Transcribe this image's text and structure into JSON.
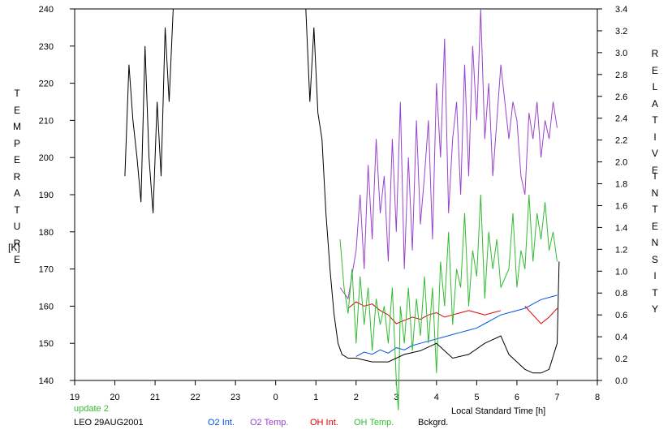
{
  "chart_data": {
    "type": "line",
    "left_axis": {
      "label_letters": [
        "T",
        "E",
        "M",
        "P",
        "E",
        "R",
        "A",
        "T",
        "U",
        "R",
        "E"
      ],
      "unit": "[K]",
      "ylim": [
        140,
        240
      ],
      "ticks": [
        "140",
        "150",
        "160",
        "170",
        "180",
        "190",
        "200",
        "210",
        "220",
        "230",
        "240"
      ]
    },
    "right_axis": {
      "label_word1": [
        "R",
        "E",
        "L",
        "A",
        "T",
        "I",
        "V",
        "E"
      ],
      "label_word2": [
        "I",
        "N",
        "T",
        "E",
        "N",
        "S",
        "I",
        "T",
        "Y"
      ],
      "ylim": [
        0.0,
        3.4
      ],
      "ticks": [
        "0.0",
        "0.2",
        "0.4",
        "0.6",
        "0.8",
        "1.0",
        "1.2",
        "1.4",
        "1.6",
        "1.8",
        "2.0",
        "2.2",
        "2.4",
        "2.6",
        "2.8",
        "3.0",
        "3.2",
        "3.4"
      ]
    },
    "x_axis": {
      "label": "Local Standard Time [h]",
      "range_hours_from_19": [
        0,
        13
      ],
      "ticks": [
        "19",
        "20",
        "21",
        "22",
        "23",
        "0",
        "1",
        "2",
        "3",
        "4",
        "5",
        "6",
        "7",
        "8"
      ]
    },
    "series": [
      {
        "name": "O2 Int.",
        "axis": "right",
        "color": "#0055dd",
        "x": [
          2.0,
          2.2,
          2.4,
          2.6,
          2.8,
          3.0,
          3.2,
          3.4,
          3.6,
          3.8,
          4.0,
          4.2,
          4.4,
          4.6,
          4.8,
          5.0,
          5.2,
          5.4,
          5.6,
          6.2,
          6.4,
          6.6,
          6.8,
          7.0
        ],
        "y": [
          0.22,
          0.26,
          0.24,
          0.28,
          0.25,
          0.3,
          0.28,
          0.32,
          0.34,
          0.36,
          0.38,
          0.4,
          0.42,
          0.44,
          0.46,
          0.48,
          0.52,
          0.56,
          0.6,
          0.66,
          0.7,
          0.74,
          0.76,
          0.78
        ]
      },
      {
        "name": "O2 Temp.",
        "axis": "left",
        "color": "#9944cc",
        "x": [
          1.6,
          1.8,
          2.0,
          2.1,
          2.2,
          2.3,
          2.4,
          2.5,
          2.6,
          2.7,
          2.8,
          2.9,
          3.0,
          3.1,
          3.2,
          3.3,
          3.4,
          3.5,
          3.6,
          3.7,
          3.8,
          3.9,
          4.0,
          4.1,
          4.2,
          4.3,
          4.4,
          4.5,
          4.6,
          4.7,
          4.8,
          4.9,
          5.0,
          5.1,
          5.2,
          5.3,
          5.4,
          5.5,
          5.6,
          5.8,
          5.9,
          6.0,
          6.1,
          6.2,
          6.3,
          6.4,
          6.5,
          6.6,
          6.7,
          6.8,
          6.9,
          7.0
        ],
        "y": [
          165,
          162,
          175,
          190,
          170,
          198,
          178,
          205,
          185,
          195,
          172,
          205,
          180,
          215,
          170,
          200,
          175,
          210,
          182,
          195,
          210,
          178,
          220,
          200,
          232,
          185,
          205,
          215,
          190,
          225,
          195,
          230,
          210,
          240,
          205,
          220,
          195,
          210,
          225,
          205,
          215,
          210,
          195,
          190,
          212,
          205,
          215,
          200,
          210,
          205,
          215,
          208
        ]
      },
      {
        "name": "OH Int.",
        "axis": "right",
        "color": "#dd0000",
        "x": [
          1.6,
          1.8,
          2.0,
          2.2,
          2.4,
          2.6,
          2.8,
          3.0,
          3.2,
          3.4,
          3.6,
          3.8,
          4.0,
          4.2,
          4.4,
          4.6,
          4.8,
          5.0,
          5.2,
          5.4,
          5.6,
          6.2,
          6.4,
          6.6,
          6.8,
          7.0
        ],
        "y": [
          0.65,
          0.66,
          0.72,
          0.68,
          0.7,
          0.64,
          0.6,
          0.52,
          0.55,
          0.58,
          0.56,
          0.6,
          0.62,
          0.58,
          0.6,
          0.62,
          0.64,
          0.62,
          0.6,
          0.62,
          0.64,
          0.68,
          0.6,
          0.52,
          0.58,
          0.66
        ],
        "gaps_after_x": [
          1.6,
          5.6
        ]
      },
      {
        "name": "OH Temp.",
        "axis": "left",
        "color": "#33bb33",
        "x": [
          1.6,
          1.7,
          1.8,
          1.9,
          2.0,
          2.1,
          2.2,
          2.3,
          2.4,
          2.5,
          2.6,
          2.7,
          2.8,
          2.9,
          3.0,
          3.05,
          3.1,
          3.2,
          3.3,
          3.4,
          3.5,
          3.6,
          3.7,
          3.8,
          3.9,
          4.0,
          4.1,
          4.2,
          4.3,
          4.4,
          4.5,
          4.6,
          4.7,
          4.8,
          4.9,
          5.0,
          5.1,
          5.2,
          5.3,
          5.4,
          5.5,
          5.6,
          5.8,
          5.9,
          6.0,
          6.1,
          6.2,
          6.3,
          6.4,
          6.5,
          6.6,
          6.7,
          6.8,
          6.9,
          7.0
        ],
        "y": [
          178,
          165,
          158,
          170,
          150,
          168,
          155,
          165,
          148,
          162,
          155,
          160,
          150,
          165,
          140,
          132,
          160,
          150,
          165,
          148,
          162,
          152,
          168,
          150,
          165,
          142,
          172,
          160,
          180,
          155,
          170,
          165,
          185,
          160,
          175,
          168,
          190,
          162,
          180,
          170,
          178,
          165,
          170,
          185,
          165,
          175,
          170,
          190,
          172,
          185,
          178,
          188,
          175,
          180,
          172
        ]
      },
      {
        "name": "Bckgrd.",
        "axis": "left",
        "color": "#000000",
        "segments": [
          {
            "x": [
              20.25,
              20.35,
              20.45,
              20.55,
              20.65,
              20.75,
              20.85,
              20.95,
              21.05,
              21.15,
              21.25,
              21.35,
              21.45
            ],
            "y": [
              195,
              225,
              210,
              200,
              188,
              230,
              200,
              185,
              215,
              195,
              235,
              215,
              240
            ]
          },
          {
            "x": [
              0.75,
              0.85,
              0.95,
              1.05,
              1.15,
              1.25,
              1.35,
              1.45,
              1.55,
              1.65,
              1.8,
              2.0,
              2.4,
              2.8,
              3.2,
              3.6,
              4.0,
              4.4,
              4.8,
              5.2,
              5.6,
              5.8,
              6.0,
              6.2,
              6.4,
              6.6,
              6.8,
              7.0,
              7.05
            ],
            "y": [
              240,
              215,
              235,
              212,
              205,
              185,
              170,
              158,
              150,
              147,
              146,
              146,
              145,
              145,
              147,
              148,
              150,
              146,
              147,
              150,
              152,
              147,
              145,
              143,
              142,
              142,
              143,
              150,
              172
            ]
          }
        ]
      }
    ],
    "legend": {
      "placement": "bottom",
      "annotation": "update 2",
      "station": "LEO 29AUG2001",
      "entries": [
        {
          "label": "O2 Int.",
          "color": "#0055dd"
        },
        {
          "label": "O2 Temp.",
          "color": "#9944cc"
        },
        {
          "label": "OH Int.",
          "color": "#dd0000"
        },
        {
          "label": "OH Temp.",
          "color": "#33bb33"
        },
        {
          "label": "Bckgrd.",
          "color": "#000000"
        }
      ]
    },
    "grid": false
  }
}
